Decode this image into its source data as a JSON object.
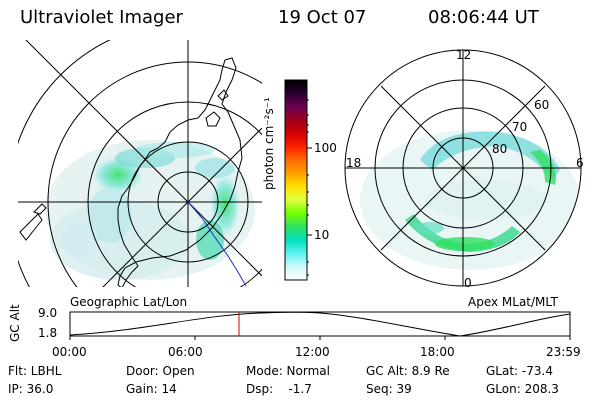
{
  "header": {
    "title": "Ultraviolet Imager",
    "date": "19 Oct 07",
    "time": "08:06:44 UT"
  },
  "colorbar": {
    "label": "photon cm⁻²s⁻¹",
    "ticks": [
      "100",
      "10"
    ],
    "gradient": [
      "#000000",
      "#2a0030",
      "#6a0050",
      "#a00020",
      "#d00000",
      "#ff2000",
      "#ff6a00",
      "#ffa000",
      "#ffe000",
      "#e0ff40",
      "#70ff00",
      "#30e060",
      "#00e0c0",
      "#60f0f0",
      "#d0f8f8",
      "#ffffff"
    ]
  },
  "left_map": {
    "label": "Geographic Lat/Lon"
  },
  "right_map": {
    "label": "Apex MLat/MLT",
    "hour_labels": {
      "top": "12",
      "left": "18",
      "right": "6",
      "bottom": "0"
    },
    "lat_labels": [
      "60",
      "70",
      "80"
    ]
  },
  "timeline": {
    "axis_label": "GC Alt",
    "y_ticks": [
      "9.0",
      "1.8"
    ],
    "x_ticks": [
      "00:00",
      "06:00",
      "12:00",
      "18:00",
      "23:59"
    ],
    "current_time_fraction": 0.338
  },
  "info": {
    "flt": "Flt: LBHL",
    "ip": "IP: 36.0",
    "door": "Door: Open",
    "gain": "Gain: 14",
    "mode": "Mode: Normal",
    "dsp": "Dsp:    -1.7",
    "gc_alt": "GC Alt: 8.9 Re",
    "seq": "Seq: 39",
    "glat": "GLat: -73.4",
    "glon": "GLon: 208.3"
  }
}
